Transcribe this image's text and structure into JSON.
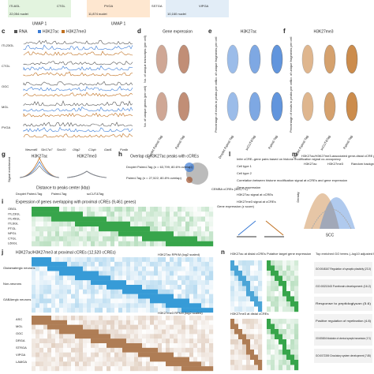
{
  "top": {
    "nuclei": [
      "22,054 nuclei",
      "11,874 nuclei",
      "10,160 nuclei"
    ],
    "umap": [
      "UMAP 1",
      "UMAP 1"
    ],
    "clusters": [
      "ITL6GL",
      "CTGL",
      "PVGA",
      "SSTGA",
      "VIPGA"
    ]
  },
  "panel_c": {
    "letter": "c",
    "legend": [
      "RNA",
      "H3K27ac",
      "H3K27me3"
    ],
    "rows": [
      "ITL23GL",
      "CTGL",
      "OGC",
      "MGL",
      "PVGA"
    ],
    "genes": [
      "Neurod6",
      "Slc17a7",
      "Sox10",
      "Olig2",
      "C1qb",
      "Gad1",
      "Pvalb"
    ]
  },
  "panel_d": {
    "letter": "d",
    "title": "Gene expression",
    "ylabels": [
      "No. of unique transcripts (per cell)",
      "No. of unique genes (per cell)"
    ],
    "xlabels": [
      "Droplet Paired-Tag",
      "Paired-Tag"
    ]
  },
  "panel_e": {
    "letter": "e",
    "title": "H3K27ac",
    "ylabels": [
      "No. of unique fragments per cell",
      "Percentage of reads in peaks per cell"
    ],
    "xlabels": [
      "Droplet Paired-Tag",
      "scCUT&Tag",
      "Paired-Tag"
    ]
  },
  "panel_f": {
    "letter": "f",
    "title": "H3K27me3",
    "ylabels": [
      "No. of unique fragments per cell",
      "Percentage of reads in peaks per cell"
    ],
    "xlabels": [
      "Droplet Paired-Tag",
      "scCUT&Tag",
      "Paired-Tag"
    ]
  },
  "panel_g": {
    "letter": "g",
    "titles": [
      "H3K27ac",
      "H3K27me3"
    ],
    "ylabel": "Signal enrichment",
    "xlabel": "Distance to peaks center (kbp)",
    "legend": [
      "Droplet Paired-Tag",
      "Paired-Tag",
      "scCUT&Tag"
    ]
  },
  "panel_h": {
    "letter": "h",
    "title": "Overlap of H3K27ac peaks with cCREs",
    "labels": [
      "Droplet Paired-Tag (n = 63,799; 80.6% overlap)",
      "Paired-Tag (n = 27,522; 80.8% overlap)",
      "CEMBA cCREs (363,771)"
    ]
  },
  "panel_i": {
    "letter": "i",
    "title": "Expression of genes overlapping with proximal cCREs (9,461 genes)",
    "rows": [
      "OBGL",
      "ITL23GL",
      "ITL45GL",
      "ITL6GL",
      "PTGL",
      "NPGL",
      "CTGL",
      "L6bGL"
    ],
    "legend": "Gene expression (z score)"
  },
  "panel_j": {
    "letter": "j",
    "title": "H3K27ac/H3K27me3 at proximal cCREs (12,520 cCREs)",
    "groups": [
      "Glutamatergic neurons",
      "Non-neurons",
      "GABAergic neurons"
    ],
    "rows": [
      "ASC",
      "MGL",
      "OGC",
      "DRGA",
      "STRGA",
      "VIPGA",
      "LAMGA"
    ],
    "legend1": "H3K27ac RPKM (log2 scaled)",
    "legend2": "H3K27me3 RPKM (log2 scaled)"
  },
  "panel_l": {
    "letter": "l",
    "texts": [
      "Infer cCRE–gene pairs based on histone modification signal co-occupancy",
      "Cell type 1",
      "Cell type 2",
      "Correlation between histone modification signal at cCREs and gene expression",
      "Gene expression",
      "H3K27ac signal at cCREs",
      "H3K27me3 signal at cCREs"
    ]
  },
  "panel_m": {
    "letter": "m",
    "title": "H3K27ac/H3K27me3-associated gene-distal cCRE pairs",
    "legend": [
      "H3K27ac",
      "H3K27me3",
      "Random background"
    ],
    "xlabel": "SCC",
    "ylabel": "Density"
  },
  "panel_n": {
    "letter": "n",
    "headers": [
      "H3K27ac at distal cCREs",
      "Putative target gene expression",
      "Top enriched GO terms (–log10 adjusted P)",
      "H3K27me3 at distal cCREs"
    ],
    "go": [
      "GO:0048167 Regulation of synaptic plasticity (23.3)",
      "GO:0021543 Forebrain development (16.2)",
      "Response to peptidoglycan (5.6)",
      "Positive regulation of myelination (4.8)",
      "GO:0050804 Modulation of chemical synaptic transmission (17.2)",
      "GO:0072359 Circulatory system development (7.85)"
    ]
  }
}
